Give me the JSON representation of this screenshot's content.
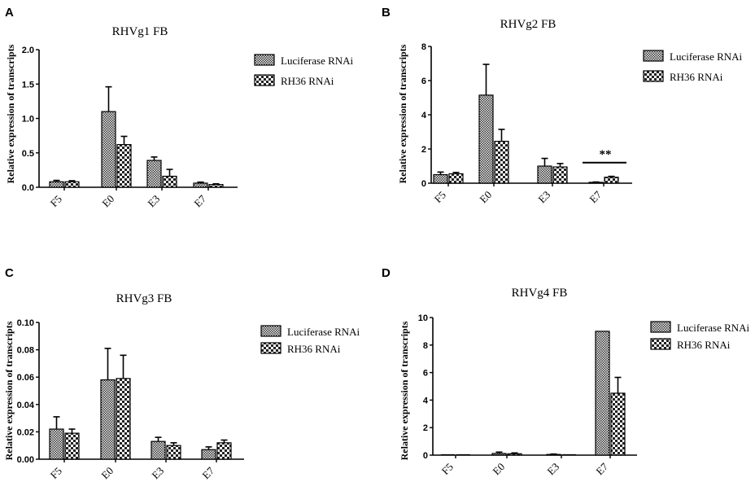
{
  "colors": {
    "axis": "#000000",
    "bar_edge": "#000000",
    "background": "#ffffff"
  },
  "chart_data": [
    {
      "panel": "A",
      "type": "bar",
      "title": "RHVg1 FB",
      "ylabel": "Relative expression of transcripts",
      "xlabel": "",
      "categories": [
        "F5",
        "E0",
        "E3",
        "E7"
      ],
      "ylim": [
        0,
        2.0
      ],
      "yticks": [
        "0.0",
        "0.5",
        "1.0",
        "1.5",
        "2.0"
      ],
      "series": [
        {
          "name": "Luciferase RNAi",
          "pattern": "dense-check",
          "values": [
            0.08,
            1.1,
            0.39,
            0.06
          ],
          "errors": [
            0.02,
            0.36,
            0.05,
            0.015
          ]
        },
        {
          "name": "RH36 RNAi",
          "pattern": "coarse-check",
          "values": [
            0.08,
            0.62,
            0.16,
            0.04
          ],
          "errors": [
            0.015,
            0.12,
            0.1,
            0.01
          ]
        }
      ],
      "legend": "top-right",
      "annotations": []
    },
    {
      "panel": "B",
      "type": "bar",
      "title": "RHVg2 FB",
      "ylabel": "Relative expression of transcripts",
      "xlabel": "",
      "categories": [
        "F5",
        "E0",
        "E3",
        "E7"
      ],
      "ylim": [
        0,
        8
      ],
      "yticks": [
        "0",
        "2",
        "4",
        "6",
        "8"
      ],
      "series": [
        {
          "name": "Luciferase RNAi",
          "pattern": "dense-check",
          "values": [
            0.5,
            5.15,
            1.0,
            0.05
          ],
          "errors": [
            0.15,
            1.8,
            0.45,
            0.02
          ]
        },
        {
          "name": "RH36 RNAi",
          "pattern": "coarse-check",
          "values": [
            0.55,
            2.45,
            0.95,
            0.35
          ],
          "errors": [
            0.08,
            0.7,
            0.2,
            0.05
          ]
        }
      ],
      "legend": "top-right",
      "annotations": [
        {
          "text": "**",
          "category": "E7",
          "y": 1.2
        }
      ]
    },
    {
      "panel": "C",
      "type": "bar",
      "title": "RHVg3 FB",
      "ylabel": "Relative expression of transcripts",
      "xlabel": "",
      "categories": [
        "F5",
        "E0",
        "E3",
        "E7"
      ],
      "ylim": [
        0,
        0.1
      ],
      "yticks": [
        "0.00",
        "0.02",
        "0.04",
        "0.06",
        "0.08",
        "0.10"
      ],
      "series": [
        {
          "name": "Luciferase RNAi",
          "pattern": "dense-check",
          "values": [
            0.022,
            0.058,
            0.013,
            0.007
          ],
          "errors": [
            0.009,
            0.023,
            0.003,
            0.002
          ]
        },
        {
          "name": "RH36 RNAi",
          "pattern": "coarse-check",
          "values": [
            0.019,
            0.059,
            0.01,
            0.012
          ],
          "errors": [
            0.003,
            0.017,
            0.002,
            0.002
          ]
        }
      ],
      "legend": "top-right",
      "annotations": []
    },
    {
      "panel": "D",
      "type": "bar",
      "title": "RHVg4 FB",
      "ylabel": "Relative expression of transcripts",
      "xlabel": "",
      "categories": [
        "F5",
        "E0",
        "E3",
        "E7"
      ],
      "ylim": [
        0,
        10
      ],
      "yticks": [
        "0",
        "2",
        "4",
        "6",
        "8",
        "10"
      ],
      "series": [
        {
          "name": "Luciferase RNAi",
          "pattern": "dense-check",
          "values": [
            0.0,
            0.12,
            0.05,
            9.0
          ],
          "errors": [
            0.0,
            0.1,
            0.03,
            0.0
          ]
        },
        {
          "name": "RH36 RNAi",
          "pattern": "coarse-check",
          "values": [
            0.0,
            0.1,
            0.02,
            4.5
          ],
          "errors": [
            0.0,
            0.06,
            0.0,
            1.15
          ]
        }
      ],
      "legend": "top-right",
      "annotations": []
    }
  ]
}
